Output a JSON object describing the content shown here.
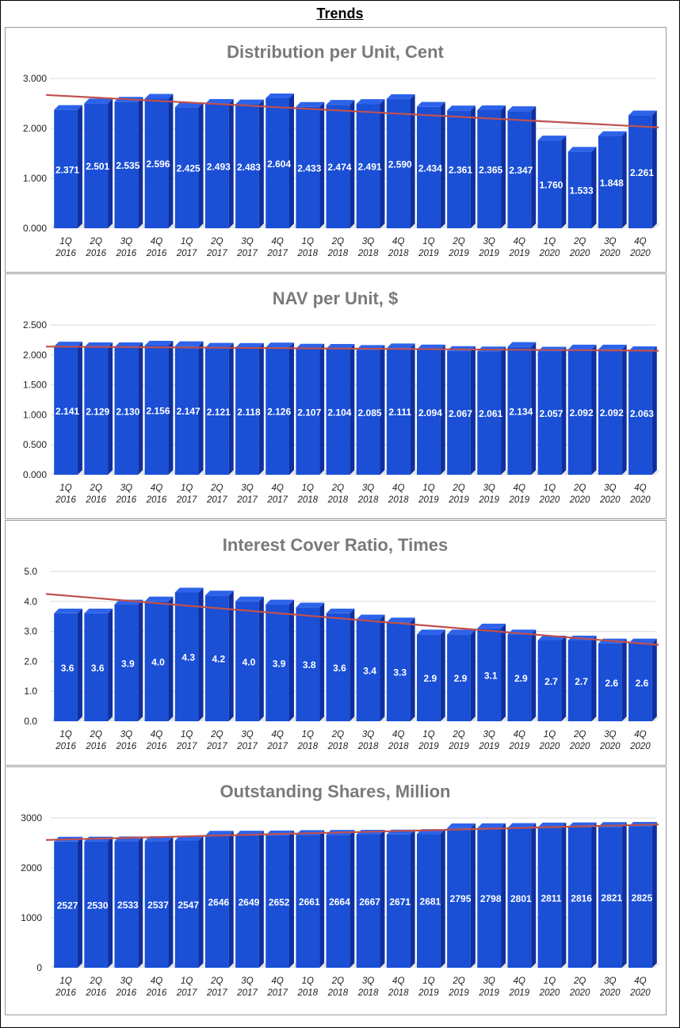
{
  "page": {
    "title": "Trends"
  },
  "colors": {
    "bar": "#1a4fd6",
    "bar_top": "#2c63ea",
    "bar_side": "#0f2f9e",
    "trend": "#c0504d",
    "title_text": "#7a7a7a",
    "grid": "#d9d9d9"
  },
  "chart_data": [
    {
      "type": "bar",
      "title": "Distribution per Unit, Cent",
      "categories": [
        [
          "1Q",
          "2016"
        ],
        [
          "2Q",
          "2016"
        ],
        [
          "3Q",
          "2016"
        ],
        [
          "4Q",
          "2016"
        ],
        [
          "1Q",
          "2017"
        ],
        [
          "2Q",
          "2017"
        ],
        [
          "3Q",
          "2017"
        ],
        [
          "4Q",
          "2017"
        ],
        [
          "1Q",
          "2018"
        ],
        [
          "2Q",
          "2018"
        ],
        [
          "3Q",
          "2018"
        ],
        [
          "4Q",
          "2018"
        ],
        [
          "1Q",
          "2019"
        ],
        [
          "2Q",
          "2019"
        ],
        [
          "3Q",
          "2019"
        ],
        [
          "4Q",
          "2019"
        ],
        [
          "1Q",
          "2020"
        ],
        [
          "2Q",
          "2020"
        ],
        [
          "3Q",
          "2020"
        ],
        [
          "4Q",
          "2020"
        ]
      ],
      "values": [
        2.371,
        2.501,
        2.535,
        2.596,
        2.425,
        2.493,
        2.483,
        2.604,
        2.433,
        2.474,
        2.491,
        2.59,
        2.434,
        2.361,
        2.365,
        2.347,
        1.76,
        1.533,
        1.848,
        2.261
      ],
      "value_labels": [
        "2.371",
        "2.501",
        "2.535",
        "2.596",
        "2.425",
        "2.493",
        "2.483",
        "2.604",
        "2.433",
        "2.474",
        "2.491",
        "2.590",
        "2.434",
        "2.361",
        "2.365",
        "2.347",
        "1.760",
        "1.533",
        "1.848",
        "2.261"
      ],
      "ylim": [
        0,
        3
      ],
      "yticks": [
        0,
        1,
        2,
        3
      ],
      "ytick_labels": [
        "0.000",
        "1.000",
        "2.000",
        "3.000"
      ],
      "trendline": {
        "start": 2.67,
        "end": 2.02
      },
      "grid": true
    },
    {
      "type": "bar",
      "title": "NAV per Unit, $",
      "categories": [
        [
          "1Q",
          "2016"
        ],
        [
          "2Q",
          "2016"
        ],
        [
          "3Q",
          "2016"
        ],
        [
          "4Q",
          "2016"
        ],
        [
          "1Q",
          "2017"
        ],
        [
          "2Q",
          "2017"
        ],
        [
          "3Q",
          "2017"
        ],
        [
          "4Q",
          "2017"
        ],
        [
          "1Q",
          "2018"
        ],
        [
          "2Q",
          "2018"
        ],
        [
          "3Q",
          "2018"
        ],
        [
          "4Q",
          "2018"
        ],
        [
          "1Q",
          "2019"
        ],
        [
          "2Q",
          "2019"
        ],
        [
          "3Q",
          "2019"
        ],
        [
          "4Q",
          "2019"
        ],
        [
          "1Q",
          "2020"
        ],
        [
          "2Q",
          "2020"
        ],
        [
          "3Q",
          "2020"
        ],
        [
          "4Q",
          "2020"
        ]
      ],
      "values": [
        2.141,
        2.129,
        2.13,
        2.156,
        2.147,
        2.121,
        2.118,
        2.126,
        2.107,
        2.104,
        2.085,
        2.111,
        2.094,
        2.067,
        2.061,
        2.134,
        2.057,
        2.092,
        2.092,
        2.063
      ],
      "value_labels": [
        "2.141",
        "2.129",
        "2.130",
        "2.156",
        "2.147",
        "2.121",
        "2.118",
        "2.126",
        "2.107",
        "2.104",
        "2.085",
        "2.111",
        "2.094",
        "2.067",
        "2.061",
        "2.134",
        "2.057",
        "2.092",
        "2.092",
        "2.063"
      ],
      "ylim": [
        0,
        2.5
      ],
      "yticks": [
        0,
        0.5,
        1,
        1.5,
        2,
        2.5
      ],
      "ytick_labels": [
        "0.000",
        "0.500",
        "1.000",
        "1.500",
        "2.000",
        "2.500"
      ],
      "trendline": {
        "start": 2.14,
        "end": 2.07
      },
      "grid": true
    },
    {
      "type": "bar",
      "title": "Interest Cover Ratio, Times",
      "categories": [
        [
          "1Q",
          "2016"
        ],
        [
          "2Q",
          "2016"
        ],
        [
          "3Q",
          "2016"
        ],
        [
          "4Q",
          "2016"
        ],
        [
          "1Q",
          "2017"
        ],
        [
          "2Q",
          "2017"
        ],
        [
          "3Q",
          "2017"
        ],
        [
          "4Q",
          "2017"
        ],
        [
          "1Q",
          "2018"
        ],
        [
          "2Q",
          "2018"
        ],
        [
          "3Q",
          "2018"
        ],
        [
          "4Q",
          "2018"
        ],
        [
          "1Q",
          "2019"
        ],
        [
          "2Q",
          "2019"
        ],
        [
          "3Q",
          "2019"
        ],
        [
          "4Q",
          "2019"
        ],
        [
          "1Q",
          "2020"
        ],
        [
          "2Q",
          "2020"
        ],
        [
          "3Q",
          "2020"
        ],
        [
          "4Q",
          "2020"
        ]
      ],
      "values": [
        3.6,
        3.6,
        3.9,
        4.0,
        4.3,
        4.2,
        4.0,
        3.9,
        3.8,
        3.6,
        3.4,
        3.3,
        2.9,
        2.9,
        3.1,
        2.9,
        2.7,
        2.7,
        2.6,
        2.6
      ],
      "value_labels": [
        "3.6",
        "3.6",
        "3.9",
        "4.0",
        "4.3",
        "4.2",
        "4.0",
        "3.9",
        "3.8",
        "3.6",
        "3.4",
        "3.3",
        "2.9",
        "2.9",
        "3.1",
        "2.9",
        "2.7",
        "2.7",
        "2.6",
        "2.6"
      ],
      "ylim": [
        0,
        5
      ],
      "yticks": [
        0,
        1,
        2,
        3,
        4,
        5
      ],
      "ytick_labels": [
        "0.0",
        "1.0",
        "2.0",
        "3.0",
        "4.0",
        "5.0"
      ],
      "trendline": {
        "start": 4.25,
        "end": 2.55
      },
      "grid": true
    },
    {
      "type": "bar",
      "title": "Outstanding Shares, Million",
      "categories": [
        [
          "1Q",
          "2016"
        ],
        [
          "2Q",
          "2016"
        ],
        [
          "3Q",
          "2016"
        ],
        [
          "4Q",
          "2016"
        ],
        [
          "1Q",
          "2017"
        ],
        [
          "2Q",
          "2017"
        ],
        [
          "3Q",
          "2017"
        ],
        [
          "4Q",
          "2017"
        ],
        [
          "1Q",
          "2018"
        ],
        [
          "2Q",
          "2018"
        ],
        [
          "3Q",
          "2018"
        ],
        [
          "4Q",
          "2018"
        ],
        [
          "1Q",
          "2019"
        ],
        [
          "2Q",
          "2019"
        ],
        [
          "3Q",
          "2019"
        ],
        [
          "4Q",
          "2019"
        ],
        [
          "1Q",
          "2020"
        ],
        [
          "2Q",
          "2020"
        ],
        [
          "3Q",
          "2020"
        ],
        [
          "4Q",
          "2020"
        ]
      ],
      "values": [
        2527,
        2530,
        2533,
        2537,
        2547,
        2646,
        2649,
        2652,
        2661,
        2664,
        2667,
        2671,
        2681,
        2795,
        2798,
        2801,
        2811,
        2816,
        2821,
        2825
      ],
      "value_labels": [
        "2527",
        "2530",
        "2533",
        "2537",
        "2547",
        "2646",
        "2649",
        "2652",
        "2661",
        "2664",
        "2667",
        "2671",
        "2681",
        "2795",
        "2798",
        "2801",
        "2811",
        "2816",
        "2821",
        "2825"
      ],
      "ylim": [
        0,
        3000
      ],
      "yticks": [
        0,
        1000,
        2000,
        3000
      ],
      "ytick_labels": [
        "0",
        "1000",
        "2000",
        "3000"
      ],
      "trendline": {
        "start": 2560,
        "end": 2870
      },
      "grid": true
    }
  ]
}
